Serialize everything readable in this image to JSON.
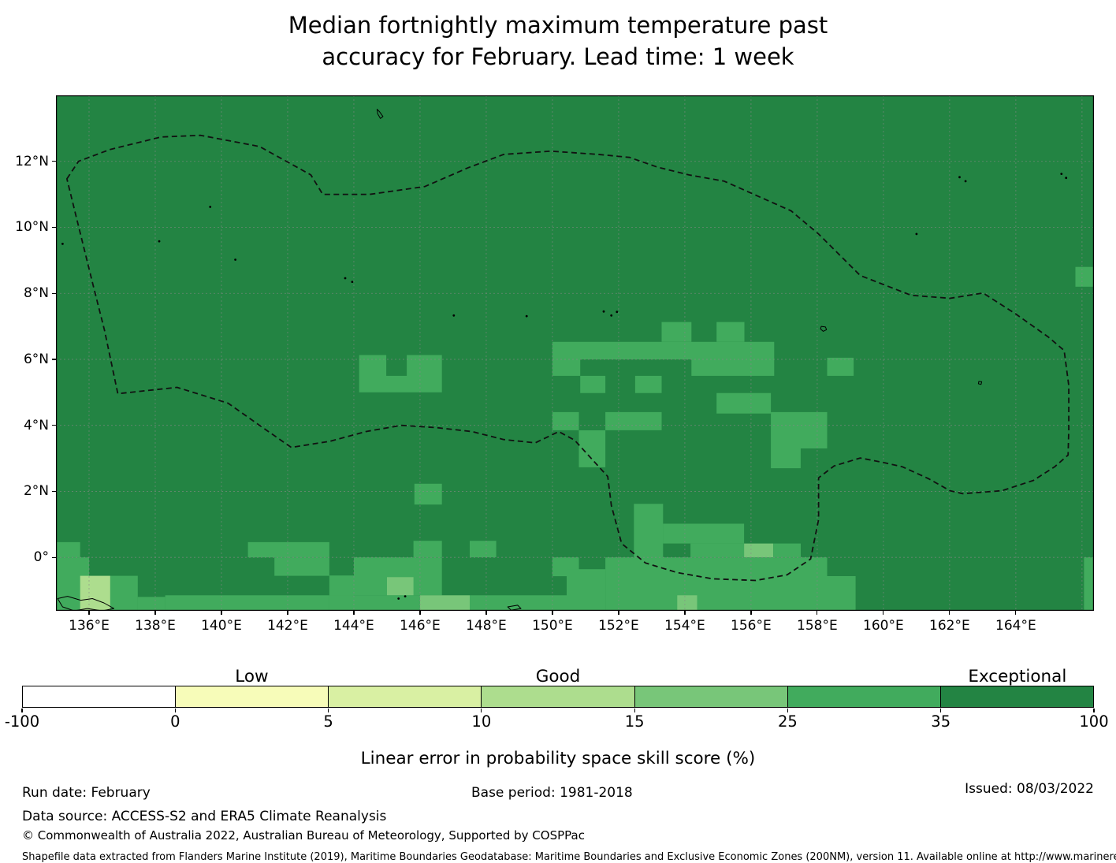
{
  "title": {
    "line1": "Median fortnightly maximum temperature past",
    "line2": "accuracy for February. Lead time: 1 week"
  },
  "chart_data": {
    "type": "heatmap",
    "title": "Median fortnightly maximum temperature past accuracy for February. Lead time: 1 week",
    "map_bounds": {
      "lon": [
        135.0,
        166.36
      ],
      "lat": [
        -1.62,
        14.0
      ]
    },
    "axes": {
      "x_ticks": [
        {
          "value": 136,
          "label": "136°E"
        },
        {
          "value": 138,
          "label": "138°E"
        },
        {
          "value": 140,
          "label": "140°E"
        },
        {
          "value": 142,
          "label": "142°E"
        },
        {
          "value": 144,
          "label": "144°E"
        },
        {
          "value": 146,
          "label": "146°E"
        },
        {
          "value": 148,
          "label": "148°E"
        },
        {
          "value": 150,
          "label": "150°E"
        },
        {
          "value": 152,
          "label": "152°E"
        },
        {
          "value": 154,
          "label": "154°E"
        },
        {
          "value": 156,
          "label": "156°E"
        },
        {
          "value": 158,
          "label": "158°E"
        },
        {
          "value": 160,
          "label": "160°E"
        },
        {
          "value": 162,
          "label": "162°E"
        },
        {
          "value": 164,
          "label": "164°E"
        }
      ],
      "extra_gridlines_lon": [
        166
      ],
      "y_ticks": [
        {
          "value": 0,
          "label": "0°"
        },
        {
          "value": 2,
          "label": "2°N"
        },
        {
          "value": 4,
          "label": "4°N"
        },
        {
          "value": 6,
          "label": "6°N"
        },
        {
          "value": 8,
          "label": "8°N"
        },
        {
          "value": 10,
          "label": "10°N"
        },
        {
          "value": 12,
          "label": "12°N"
        }
      ],
      "grid": "on"
    },
    "colors": {
      "bins": {
        "-100-0": "#ffffff",
        "0-5": "#f7fcb9",
        "5-10": "#d9f0a3",
        "10-15": "#addd8e",
        "15-25": "#78c679",
        "25-35": "#41ab5d",
        "35-100": "#238443"
      },
      "gridline": "#888888",
      "boundary": "#111111",
      "coastline": "#000000"
    },
    "colorbar": {
      "bin_order": [
        "-100-0",
        "0-5",
        "5-10",
        "10-15",
        "15-25",
        "25-35",
        "35-100"
      ],
      "boundary_labels": [
        "-100",
        "0",
        "5",
        "10",
        "15",
        "25",
        "35",
        "100"
      ],
      "categories": [
        {
          "label": "Low",
          "bin_index": 1
        },
        {
          "label": "Good",
          "bin_index": 3
        },
        {
          "label": "Exceptional",
          "bin_index": 6
        }
      ],
      "axis_label": "Linear error in probability space skill score (%)"
    },
    "background_bin": "35-100",
    "cells": [
      [
        144.16,
        146.66,
        5.0,
        6.13,
        "25-35"
      ],
      [
        144.98,
        145.6,
        5.5,
        6.13,
        "35-100"
      ],
      [
        145.83,
        146.66,
        1.6,
        2.23,
        "25-35"
      ],
      [
        153.3,
        154.2,
        6.53,
        7.13,
        "25-35"
      ],
      [
        154.96,
        155.8,
        6.53,
        7.13,
        "25-35"
      ],
      [
        150.0,
        156.7,
        6.0,
        6.53,
        "25-35"
      ],
      [
        154.2,
        156.7,
        5.5,
        6.0,
        "25-35"
      ],
      [
        150.0,
        150.84,
        5.5,
        6.0,
        "25-35"
      ],
      [
        150.84,
        151.6,
        4.98,
        5.5,
        "25-35"
      ],
      [
        152.5,
        153.3,
        4.98,
        5.5,
        "25-35"
      ],
      [
        158.3,
        159.1,
        5.5,
        6.05,
        "25-35"
      ],
      [
        154.96,
        156.6,
        4.36,
        4.98,
        "25-35"
      ],
      [
        156.6,
        158.3,
        3.3,
        4.4,
        "25-35"
      ],
      [
        156.6,
        157.5,
        2.7,
        3.3,
        "25-35"
      ],
      [
        150.0,
        150.8,
        3.85,
        4.4,
        "25-35"
      ],
      [
        151.6,
        153.3,
        3.85,
        4.4,
        "25-35"
      ],
      [
        150.8,
        151.6,
        2.73,
        3.85,
        "25-35"
      ],
      [
        152.46,
        153.34,
        -0.36,
        1.62,
        "25-35"
      ],
      [
        153.34,
        155.79,
        0.42,
        1.02,
        "25-35"
      ],
      [
        154.17,
        155.79,
        0.0,
        0.42,
        "25-35"
      ],
      [
        155.79,
        156.67,
        0.0,
        0.42,
        "15-25"
      ],
      [
        156.67,
        157.5,
        0.0,
        0.42,
        "25-35"
      ],
      [
        165.8,
        166.36,
        8.2,
        8.8,
        "25-35"
      ],
      [
        135.0,
        135.73,
        0.0,
        0.46,
        "25-35"
      ],
      [
        140.8,
        143.26,
        0.0,
        0.46,
        "25-35"
      ],
      [
        145.8,
        146.66,
        0.0,
        0.5,
        "25-35"
      ],
      [
        147.5,
        148.3,
        0.0,
        0.5,
        "25-35"
      ],
      [
        135.0,
        136.0,
        -1.62,
        0.0,
        "25-35"
      ],
      [
        135.73,
        136.64,
        -1.62,
        -0.56,
        "10-15"
      ],
      [
        136.64,
        137.47,
        -1.62,
        -0.56,
        "25-35"
      ],
      [
        137.47,
        138.3,
        -1.62,
        -1.2,
        "25-35"
      ],
      [
        138.3,
        143.26,
        -1.62,
        -1.15,
        "25-35"
      ],
      [
        141.6,
        143.26,
        -0.56,
        0.0,
        "25-35"
      ],
      [
        143.26,
        144.0,
        -1.62,
        -0.55,
        "25-35"
      ],
      [
        144.0,
        146.66,
        -1.15,
        0.0,
        "25-35"
      ],
      [
        145.0,
        145.8,
        -1.15,
        -0.6,
        "15-25"
      ],
      [
        143.26,
        146.0,
        -1.62,
        -1.15,
        "25-35"
      ],
      [
        146.0,
        147.5,
        -1.62,
        -1.15,
        "15-25"
      ],
      [
        147.5,
        150.43,
        -1.62,
        -1.15,
        "25-35"
      ],
      [
        150.0,
        150.8,
        -0.57,
        0.0,
        "25-35"
      ],
      [
        150.43,
        151.6,
        -1.62,
        -0.36,
        "25-35"
      ],
      [
        151.6,
        158.3,
        -1.62,
        0.0,
        "25-35"
      ],
      [
        153.77,
        154.37,
        -1.62,
        -1.15,
        "15-25"
      ],
      [
        158.3,
        159.16,
        -1.62,
        -0.57,
        "25-35"
      ],
      [
        166.06,
        166.36,
        -1.62,
        0.0,
        "25-35"
      ]
    ],
    "eez_boundary": [
      [
        135.33,
        11.47
      ],
      [
        135.68,
        12.0
      ],
      [
        136.63,
        12.36
      ],
      [
        138.18,
        12.74
      ],
      [
        139.37,
        12.79
      ],
      [
        141.15,
        12.45
      ],
      [
        142.7,
        11.59
      ],
      [
        143.06,
        11.0
      ],
      [
        144.48,
        11.0
      ],
      [
        146.15,
        11.24
      ],
      [
        147.46,
        11.81
      ],
      [
        148.53,
        12.21
      ],
      [
        149.95,
        12.31
      ],
      [
        151.38,
        12.21
      ],
      [
        152.33,
        12.12
      ],
      [
        153.16,
        11.83
      ],
      [
        154.12,
        11.59
      ],
      [
        155.19,
        11.4
      ],
      [
        157.21,
        10.5
      ],
      [
        158.04,
        9.8
      ],
      [
        159.3,
        8.54
      ],
      [
        160.84,
        7.94
      ],
      [
        162.01,
        7.85
      ],
      [
        163.01,
        8.01
      ],
      [
        163.98,
        7.39
      ],
      [
        164.98,
        6.68
      ],
      [
        165.46,
        6.27
      ],
      [
        165.6,
        5.2
      ],
      [
        165.6,
        3.89
      ],
      [
        165.58,
        3.1
      ],
      [
        165.17,
        2.74
      ],
      [
        164.53,
        2.33
      ],
      [
        163.58,
        2.02
      ],
      [
        162.39,
        1.93
      ],
      [
        162.01,
        2.02
      ],
      [
        161.37,
        2.38
      ],
      [
        160.58,
        2.74
      ],
      [
        160.06,
        2.86
      ],
      [
        159.3,
        3.01
      ],
      [
        158.51,
        2.77
      ],
      [
        158.04,
        2.41
      ],
      [
        158.04,
        1.14
      ],
      [
        157.8,
        -0.05
      ],
      [
        157.09,
        -0.53
      ],
      [
        156.14,
        -0.7
      ],
      [
        154.83,
        -0.65
      ],
      [
        153.76,
        -0.46
      ],
      [
        152.81,
        -0.17
      ],
      [
        152.09,
        0.42
      ],
      [
        151.78,
        1.57
      ],
      [
        151.67,
        2.45
      ],
      [
        150.67,
        3.55
      ],
      [
        150.19,
        3.81
      ],
      [
        149.48,
        3.47
      ],
      [
        148.53,
        3.57
      ],
      [
        147.57,
        3.81
      ],
      [
        146.5,
        3.93
      ],
      [
        145.43,
        4.0
      ],
      [
        144.36,
        3.81
      ],
      [
        143.29,
        3.52
      ],
      [
        142.11,
        3.33
      ],
      [
        141.15,
        4.0
      ],
      [
        140.2,
        4.67
      ],
      [
        138.66,
        5.15
      ],
      [
        136.87,
        4.96
      ],
      [
        136.47,
        6.87
      ],
      [
        136.11,
        8.3
      ],
      [
        135.61,
        10.33
      ],
      [
        135.33,
        11.47
      ]
    ],
    "islands": {
      "blobs": [
        [
          [
            144.7,
            13.58
          ],
          [
            144.78,
            13.5
          ],
          [
            144.88,
            13.36
          ],
          [
            144.8,
            13.3
          ],
          [
            144.72,
            13.44
          ]
        ],
        [
          [
            135.05,
            -1.25
          ],
          [
            135.35,
            -1.18
          ],
          [
            135.75,
            -1.3
          ],
          [
            136.1,
            -1.25
          ],
          [
            136.45,
            -1.38
          ],
          [
            136.75,
            -1.55
          ],
          [
            136.4,
            -1.62
          ],
          [
            135.95,
            -1.55
          ],
          [
            135.55,
            -1.62
          ],
          [
            135.2,
            -1.5
          ]
        ],
        [
          [
            158.12,
            7.0
          ],
          [
            158.25,
            6.98
          ],
          [
            158.28,
            6.9
          ],
          [
            158.18,
            6.85
          ],
          [
            158.1,
            6.92
          ]
        ],
        [
          [
            162.88,
            5.33
          ],
          [
            162.97,
            5.32
          ],
          [
            162.95,
            5.24
          ],
          [
            162.87,
            5.26
          ]
        ],
        [
          [
            148.65,
            -1.5
          ],
          [
            148.95,
            -1.45
          ],
          [
            149.05,
            -1.55
          ],
          [
            148.75,
            -1.6
          ]
        ]
      ],
      "dots": [
        [
          135.2,
          9.5
        ],
        [
          138.12,
          9.58
        ],
        [
          139.66,
          10.62
        ],
        [
          140.42,
          9.02
        ],
        [
          143.74,
          8.46
        ],
        [
          143.95,
          8.35
        ],
        [
          147.02,
          7.33
        ],
        [
          149.22,
          7.31
        ],
        [
          151.55,
          7.45
        ],
        [
          151.78,
          7.33
        ],
        [
          151.95,
          7.44
        ],
        [
          161.0,
          9.8
        ],
        [
          162.3,
          11.52
        ],
        [
          162.48,
          11.4
        ],
        [
          165.38,
          11.62
        ],
        [
          165.52,
          11.5
        ],
        [
          136.9,
          -1.7
        ],
        [
          137.2,
          -1.72
        ],
        [
          137.55,
          -1.74
        ],
        [
          145.35,
          -1.25
        ],
        [
          145.55,
          -1.18
        ]
      ]
    }
  },
  "footer": {
    "run_date": "Run date: February",
    "base_period": "Base period: 1981-2018",
    "issued": "Issued: 08/03/2022",
    "data_source": "Data source: ACCESS-S2 and ERA5 Climate Reanalysis",
    "copyright": "© Commonwealth of Australia 2022, Australian Bureau of Meteorology, Supported by COSPPac",
    "shapefile_note": "Shapefile data extracted from Flanders Marine Institute (2019), Maritime Boundaries Geodatabase: Maritime Boundaries and Exclusive Economic Zones (200NM), version 11. Available online at http://www.marineregions.org/."
  }
}
